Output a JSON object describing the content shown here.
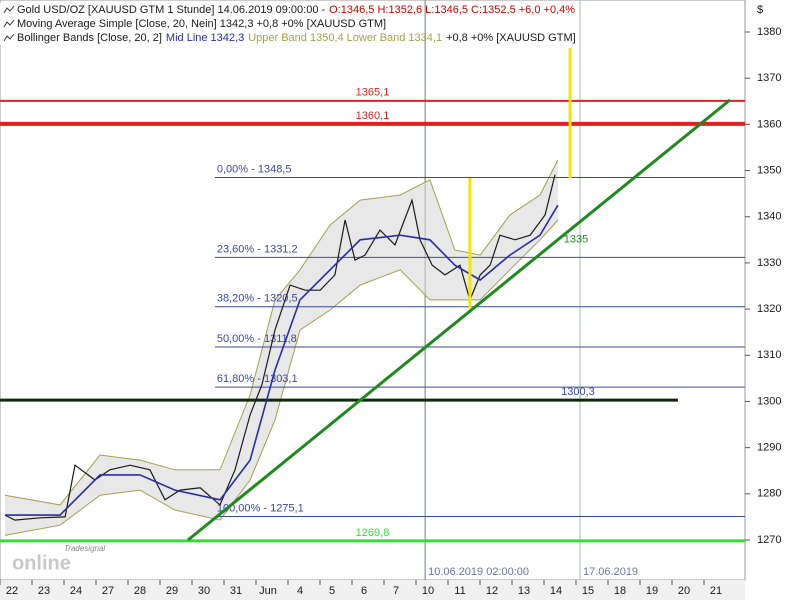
{
  "chart_data": {
    "type": "line",
    "y_unit": "$",
    "watermark": [
      "Tradesignal",
      "online"
    ],
    "xlim": [
      -0.375,
      22.906
    ],
    "ylim": [
      1261.34,
      1386.93
    ],
    "yticks": [
      1270,
      1280,
      1290,
      1300,
      1310,
      1320,
      1330,
      1340,
      1350,
      1360,
      1370,
      1380
    ],
    "xticks": [
      {
        "value": 0,
        "label": "22"
      },
      {
        "value": 1,
        "label": "23"
      },
      {
        "value": 2,
        "label": "24"
      },
      {
        "value": 3,
        "label": "27"
      },
      {
        "value": 4,
        "label": "28"
      },
      {
        "value": 5,
        "label": "29"
      },
      {
        "value": 6,
        "label": "30"
      },
      {
        "value": 7,
        "label": "31"
      },
      {
        "value": 8,
        "label": "Jun"
      },
      {
        "value": 9,
        "label": "4"
      },
      {
        "value": 10,
        "label": "5"
      },
      {
        "value": 11,
        "label": "6"
      },
      {
        "value": 12,
        "label": "7"
      },
      {
        "value": 13,
        "label": "10"
      },
      {
        "value": 14,
        "label": "11"
      },
      {
        "value": 15,
        "label": "12"
      },
      {
        "value": 16,
        "label": "13"
      },
      {
        "value": 17,
        "label": "14"
      },
      {
        "value": 18,
        "label": "15"
      },
      {
        "value": 19,
        "label": "18"
      },
      {
        "value": 20,
        "label": "19"
      },
      {
        "value": 21,
        "label": "20"
      },
      {
        "value": 22,
        "label": "21"
      }
    ],
    "series": [
      {
        "name": "Gold USD/OZ [XAUUSD GTM  1 Stunde] 14.06.2019 09:00:00 -",
        "legend_parts": [
          "O:1346,5 H:1352,6 L:1346,5 C:1352,5 +6,0 +0,4%"
        ],
        "legend_colors": [
          "#cc0000"
        ],
        "color": "#1a1a1a",
        "x": [
          -0.22,
          0.09,
          0.88,
          1.66,
          1.97,
          2.59,
          3.06,
          3.69,
          4.31,
          4.78,
          5.25,
          5.88,
          6.5,
          6.97,
          7.44,
          7.81,
          8.22,
          8.69,
          9.16,
          9.63,
          10.09,
          10.41,
          10.72,
          11.03,
          11.5,
          11.97,
          12.5,
          12.75,
          13.13,
          13.53,
          14,
          14.31,
          14.63,
          14.94,
          15.25,
          15.72,
          16.19,
          16.66,
          16.97
        ],
        "values": [
          1275.4,
          1274.3,
          1274.8,
          1275,
          1286.2,
          1283,
          1285.2,
          1286.2,
          1285.2,
          1278.7,
          1280.8,
          1281.3,
          1277.6,
          1285.2,
          1297.1,
          1303.6,
          1315.5,
          1325.2,
          1324.1,
          1324.1,
          1327.4,
          1339.3,
          1330.6,
          1331.7,
          1337.1,
          1333.9,
          1343.6,
          1335,
          1329.5,
          1327.4,
          1329.5,
          1322,
          1327.4,
          1329.5,
          1336,
          1335,
          1336,
          1340.4,
          1349.1
        ]
      },
      {
        "name": "Moving Average Simple [Close, 20, Nein] 1342,3 +0,8 +0% [XAUUSD GTM]",
        "legend_parts": [],
        "legend_colors": [],
        "color": "#2b2ba8",
        "x": [
          -0.22,
          1.5,
          2.75,
          4,
          5.09,
          6.5,
          7.44,
          8.22,
          9,
          9.94,
          10.88,
          12.13,
          13.06,
          13.84,
          14.63,
          15.56,
          16.5,
          17.06
        ],
        "values": [
          1275.4,
          1275.4,
          1284.1,
          1284.1,
          1280.8,
          1278.7,
          1287.3,
          1306.8,
          1322,
          1328.5,
          1335,
          1336,
          1335,
          1329.5,
          1326.3,
          1331.7,
          1336,
          1342.5
        ]
      },
      {
        "name": "Bollinger Bands [Close, 20, 2]",
        "legend_parts": [
          "Mid Line 1342,3",
          "Upper Band 1350,4 Lower Band 1334,1",
          "+0,8 +0% [XAUUSD GTM]"
        ],
        "legend_colors": [
          "#2b2ba8",
          "#a3a04a",
          "#1a1a1a"
        ],
        "color": "#a3a04a",
        "x": [
          -0.22,
          1.5,
          2.75,
          4,
          5.09,
          6.5,
          7.44,
          8.22,
          9,
          9.94,
          10.88,
          12.13,
          13.06,
          13.84,
          14.63,
          15.56,
          16.5,
          17.06
        ],
        "upper": [
          1279.7,
          1277.6,
          1288.4,
          1287.3,
          1285.2,
          1285.2,
          1301.4,
          1322,
          1328.5,
          1338.2,
          1343.6,
          1344.7,
          1348,
          1332.8,
          1331.7,
          1340.4,
          1344.7,
          1352.3
        ],
        "lower": [
          1271,
          1273.2,
          1279.7,
          1280.8,
          1276.5,
          1274.3,
          1283,
          1296,
          1315.5,
          1319.8,
          1325.2,
          1328.5,
          1322,
          1322,
          1322,
          1328.5,
          1335,
          1339.3
        ]
      }
    ],
    "levels": [
      {
        "value": 1365.1,
        "label": "1365,1",
        "color": "#e02020",
        "width": 2
      },
      {
        "value": 1360.1,
        "label": "1360,1",
        "color": "#e02020",
        "width": 4
      },
      {
        "value": 1348.5,
        "label": "0,00% - 1348,5",
        "color": "#3a4a9a",
        "width": 1,
        "from": 6.34
      },
      {
        "value": 1331.2,
        "label": "23,60% - 1331,2",
        "color": "#3a4a9a",
        "width": 1,
        "from": 6.34
      },
      {
        "value": 1320.5,
        "label": "38,20% - 1320,5",
        "color": "#3a4a9a",
        "width": 1,
        "from": 6.34
      },
      {
        "value": 1311.8,
        "label": "50,00% - 1311,8",
        "color": "#3a4a9a",
        "width": 1,
        "from": 6.34
      },
      {
        "value": 1303.1,
        "label": "61,80% - 1303,1",
        "color": "#3a4a9a",
        "width": 1,
        "from": 6.34
      },
      {
        "value": 1275.1,
        "label": "100,00% - 1275,1",
        "color": "#3a4a9a",
        "width": 1,
        "from": 6.34
      },
      {
        "value": 1300.3,
        "label": "1300,3",
        "color": "#0a2a0a",
        "width": 3,
        "to": 20.81
      },
      {
        "value": 1269.8,
        "label": "1269,8",
        "color": "#33dd33",
        "width": 3
      }
    ],
    "trendline": {
      "x": [
        5.5,
        22.44
      ],
      "values": [
        1270,
        1365.3
      ],
      "color": "#1e8a1e",
      "label": {
        "value": 1335,
        "label": "1335"
      }
    },
    "vertical_markers": [
      {
        "x": 14.31,
        "values": [
          1320.2,
          1348.4
        ],
        "color": "#f2e600"
      },
      {
        "x": 17.44,
        "values": [
          1348.4,
          1376.5
        ],
        "color": "#f2e600"
      }
    ],
    "vertical_lines": [
      {
        "x": 12.91,
        "label": "10.06.2019 02:00:00",
        "color": "#5a8a6a"
      },
      {
        "x": 17.75,
        "label": "17.06.2019",
        "color": "#9ac0a8"
      }
    ]
  }
}
